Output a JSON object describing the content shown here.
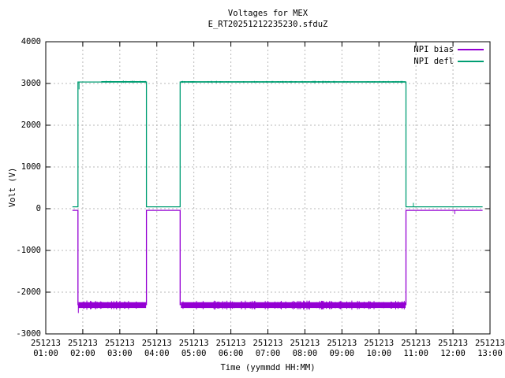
{
  "chart_data": {
    "type": "line",
    "title": "Voltages for MEX",
    "subtitle": "E_RT20251212235230.sfduZ",
    "xlabel": "Time (yymmdd HH:MM)",
    "ylabel": "Volt (V)",
    "background": "#ffffff",
    "grid": true,
    "grid_color": "#b8b8b8",
    "border_color": "#000000",
    "ylim": [
      -3000,
      4000
    ],
    "yticks": [
      4000,
      3000,
      2000,
      1000,
      0,
      -1000,
      -2000,
      -3000
    ],
    "xlim_hours": [
      1,
      13
    ],
    "xtick_date": "251213",
    "xtick_times": [
      "01:00",
      "02:00",
      "03:00",
      "04:00",
      "05:00",
      "06:00",
      "07:00",
      "08:00",
      "09:00",
      "10:00",
      "11:00",
      "12:00",
      "13:00"
    ],
    "legend_position": "top-right-inside",
    "series": [
      {
        "name": "NPI bias",
        "color": "#9400d3",
        "points_hours_volts": [
          [
            1.72,
            -40
          ],
          [
            1.87,
            -40
          ],
          [
            1.87,
            -2300
          ],
          [
            3.72,
            -2300
          ],
          [
            3.72,
            -40
          ],
          [
            4.63,
            -40
          ],
          [
            4.63,
            -2300
          ],
          [
            10.73,
            -2300
          ],
          [
            10.73,
            -40
          ],
          [
            12.8,
            -40
          ]
        ],
        "noise_segments": [
          [
            1.89,
            3.71,
            -2310,
            100
          ],
          [
            4.65,
            10.72,
            -2310,
            100
          ]
        ],
        "spikes": [
          [
            1.88,
            -2300,
            -2500
          ],
          [
            12.05,
            -40,
            -130
          ]
        ]
      },
      {
        "name": "NPI defl",
        "color": "#009e73",
        "points_hours_volts": [
          [
            1.72,
            45
          ],
          [
            1.87,
            45
          ],
          [
            1.87,
            3035
          ],
          [
            3.72,
            3035
          ],
          [
            3.72,
            45
          ],
          [
            4.63,
            45
          ],
          [
            4.63,
            3035
          ],
          [
            10.73,
            3035
          ],
          [
            10.73,
            45
          ],
          [
            12.8,
            45
          ]
        ],
        "noise_segments": [
          [
            2.5,
            3.71,
            3040,
            25
          ],
          [
            4.65,
            10.72,
            3038,
            22
          ]
        ],
        "spikes": [
          [
            1.9,
            3035,
            2860
          ],
          [
            10.93,
            45,
            140
          ]
        ]
      }
    ]
  }
}
